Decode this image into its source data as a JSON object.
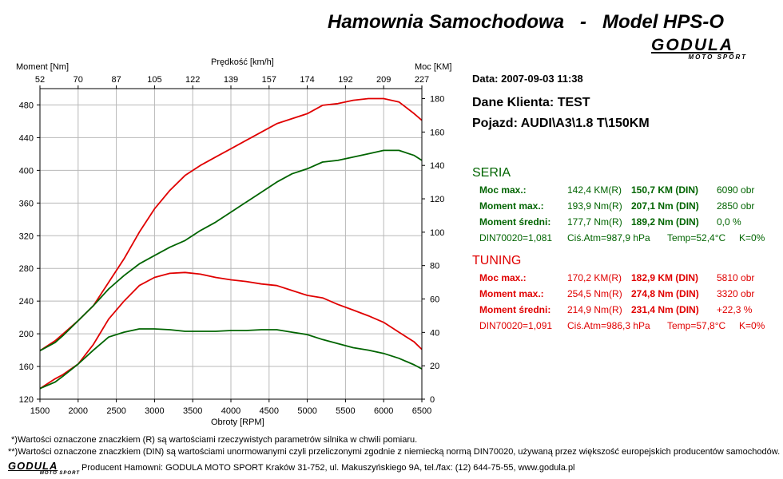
{
  "header": {
    "title": "Hamownia Samochodowa   -   Model HPS-O",
    "logo_main": "GODULA",
    "logo_sub": "MOTO SPORT"
  },
  "axes": {
    "left_title": "Moment [Nm]",
    "top_title": "Prędkość [km/h]",
    "right_title": "Moc [KM]",
    "bottom_title": "Obroty [RPM]",
    "speed_ticks": [
      "52",
      "70",
      "87",
      "105",
      "122",
      "139",
      "157",
      "174",
      "192",
      "209",
      "227"
    ],
    "left_ticks": [
      "480",
      "440",
      "400",
      "360",
      "320",
      "280",
      "240",
      "200",
      "160",
      "120"
    ],
    "right_ticks": [
      "180",
      "160",
      "140",
      "120",
      "100",
      "80",
      "60",
      "40",
      "20",
      "0"
    ],
    "rpm_ticks": [
      "1500",
      "2000",
      "2500",
      "3000",
      "3500",
      "4000",
      "4500",
      "5000",
      "5500",
      "6000",
      "6500"
    ]
  },
  "info": {
    "date": "Data: 2007-09-03  11:38",
    "client": "Dane Klienta: TEST",
    "vehicle": "Pojazd: AUDI\\A3\\1.8 T\\150KM"
  },
  "seria": {
    "title": "SERIA",
    "color": "#006400",
    "rows": [
      {
        "label": "Moc max.:",
        "r": "142,4 KM(R)",
        "din": "150,7 KM (DIN)",
        "rpm": "6090 obr"
      },
      {
        "label": "Moment max.:",
        "r": "193,9 Nm(R)",
        "din": "207,1 Nm (DIN)",
        "rpm": "2850 obr"
      },
      {
        "label": "Moment średni:",
        "r": "177,7 Nm(R)",
        "din": "189,2 Nm (DIN)",
        "rpm": "0,0 %"
      }
    ],
    "din_row": {
      "din": "DIN70020=1,081",
      "atm": "Ciś.Atm=987,9 hPa",
      "temp": "Temp=52,4°C",
      "k": "K=0%"
    }
  },
  "tuning": {
    "title": "TUNING",
    "color": "#e00000",
    "rows": [
      {
        "label": "Moc max.:",
        "r": "170,2 KM(R)",
        "din": "182,9 KM (DIN)",
        "rpm": "5810 obr"
      },
      {
        "label": "Moment max.:",
        "r": "254,5 Nm(R)",
        "din": "274,8 Nm (DIN)",
        "rpm": "3320 obr"
      },
      {
        "label": "Moment średni:",
        "r": "214,9 Nm(R)",
        "din": "231,4 Nm (DIN)",
        "rpm": "+22,3 %"
      }
    ],
    "din_row": {
      "din": "DIN70020=1,091",
      "atm": "Ciś.Atm=986,3 hPa",
      "temp": "Temp=57,8°C",
      "k": "K=0%"
    }
  },
  "footer": {
    "note1": "*)Wartości oznaczone znaczkiem (R) są wartościami rzeczywistych parametrów silnika w chwili pomiaru.",
    "note2": "**)Wartości oznaczone znaczkiem (DIN) są wartościami unormowanymi czyli przeliczonymi zgodnie z niemiecką normą DIN70020, używaną przez większość europejskich producentów samochodów.",
    "producer": "Producent Hamowni: GODULA MOTO SPORT Kraków 31-752, ul. Makuszyńskiego 9A, tel./fax: (12) 644-75-55, www.godula.pl"
  },
  "chart_data": {
    "type": "line",
    "title": "",
    "xlabel": "Obroty [RPM]",
    "ylabel": "Moment [Nm]",
    "y2label": "Moc [KM]",
    "x2label": "Prędkość [km/h]",
    "xlim": [
      1500,
      6500
    ],
    "ylim": [
      120,
      500
    ],
    "y2lim": [
      0,
      186
    ],
    "grid": true,
    "colors": {
      "seria": "#006400",
      "tuning": "#e00000"
    },
    "series": [
      {
        "group": "tuning",
        "kind": "moment",
        "axis": "left",
        "x": [
          1500,
          1700,
          1800,
          2000,
          2200,
          2400,
          2600,
          2800,
          3000,
          3200,
          3400,
          3600,
          3800,
          4000,
          4200,
          4400,
          4600,
          4800,
          5000,
          5200,
          5400,
          5600,
          5800,
          6000,
          6200,
          6400,
          6500
        ],
        "y": [
          133,
          145,
          150,
          163,
          187,
          218,
          240,
          259,
          269,
          274,
          275,
          273,
          269,
          266,
          264,
          261,
          259,
          253,
          247,
          244,
          236,
          229,
          222,
          214,
          202,
          190,
          181
        ]
      },
      {
        "group": "tuning",
        "kind": "power",
        "axis": "right",
        "x": [
          1500,
          1700,
          1800,
          2000,
          2200,
          2400,
          2600,
          2800,
          3000,
          3200,
          3400,
          3600,
          3800,
          4000,
          4200,
          4400,
          4600,
          4800,
          5000,
          5200,
          5400,
          5600,
          5800,
          6000,
          6200,
          6400,
          6500
        ],
        "y": [
          29,
          35,
          39,
          47,
          56,
          70,
          84,
          100,
          114,
          125,
          134,
          140,
          145,
          150,
          155,
          160,
          165,
          168,
          171,
          176,
          177,
          179,
          180,
          180,
          178,
          171,
          167
        ]
      },
      {
        "group": "seria",
        "kind": "moment",
        "axis": "left",
        "x": [
          1500,
          1700,
          1800,
          2000,
          2200,
          2400,
          2600,
          2800,
          3000,
          3200,
          3400,
          3600,
          3800,
          4000,
          4200,
          4400,
          4600,
          4800,
          5000,
          5200,
          5400,
          5600,
          5800,
          6000,
          6200,
          6400,
          6500
        ],
        "y": [
          133,
          141,
          148,
          163,
          180,
          196,
          202,
          206,
          206,
          205,
          203,
          203,
          203,
          204,
          204,
          205,
          205,
          202,
          199,
          193,
          188,
          183,
          180,
          176,
          170,
          162,
          157
        ]
      },
      {
        "group": "seria",
        "kind": "power",
        "axis": "right",
        "x": [
          1500,
          1700,
          1800,
          2000,
          2200,
          2400,
          2600,
          2800,
          3000,
          3200,
          3400,
          3600,
          3800,
          4000,
          4200,
          4400,
          4600,
          4800,
          5000,
          5200,
          5400,
          5600,
          5800,
          6000,
          6200,
          6400,
          6500
        ],
        "y": [
          29,
          34,
          38,
          47,
          56,
          66,
          74,
          81,
          86,
          91,
          95,
          101,
          106,
          112,
          118,
          124,
          130,
          135,
          138,
          142,
          143,
          145,
          147,
          149,
          149,
          146,
          143
        ]
      }
    ]
  }
}
